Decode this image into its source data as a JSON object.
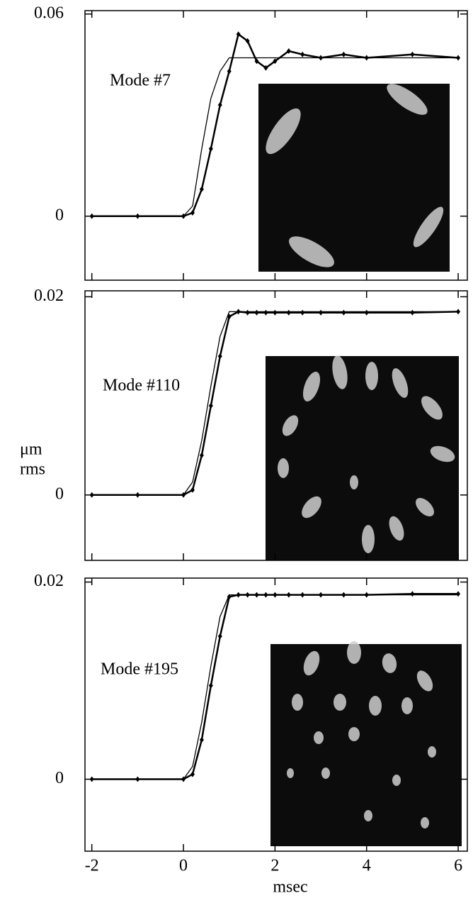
{
  "chart_data": [
    {
      "type": "line",
      "annotation": "Mode #7",
      "xlim": [
        -2.15,
        6.2
      ],
      "xticks": [
        -2,
        0,
        2,
        4,
        6
      ],
      "ylim": [
        -0.019,
        0.061
      ],
      "yticks": [
        0,
        0.06
      ],
      "x": [
        -2,
        -1,
        0,
        0.2,
        0.4,
        0.6,
        0.8,
        1.0,
        1.2,
        1.4,
        1.6,
        1.8,
        2.0,
        2.3,
        2.6,
        3,
        3.5,
        4,
        5,
        6
      ],
      "series": [
        {
          "color": "#000000",
          "marker": "diamond",
          "values": [
            0,
            0,
            0,
            0.001,
            0.008,
            0.02,
            0.033,
            0.043,
            0.054,
            0.052,
            0.046,
            0.044,
            0.046,
            0.049,
            0.048,
            0.047,
            0.048,
            0.047,
            0.048,
            0.047
          ]
        },
        {
          "color": "#000000",
          "values": [
            0,
            0,
            0,
            0.003,
            0.02,
            0.035,
            0.043,
            0.047,
            0.047,
            0.047,
            0.047,
            0.047,
            0.047,
            0.047,
            0.047,
            0.047,
            0.047,
            0.047,
            0.047,
            0.047
          ]
        }
      ]
    },
    {
      "type": "line",
      "annotation": "Mode #110",
      "ylabel": [
        "μm",
        "rms"
      ],
      "xlim": [
        -2.15,
        6.2
      ],
      "xticks": [
        -2,
        0,
        2,
        4,
        6
      ],
      "ylim": [
        -0.0066,
        0.0206
      ],
      "yticks": [
        0,
        0.02
      ],
      "x": [
        -2,
        -1,
        0,
        0.2,
        0.4,
        0.6,
        0.8,
        1.0,
        1.2,
        1.4,
        1.6,
        1.8,
        2.0,
        2.3,
        2.6,
        3,
        3.5,
        4,
        5,
        6
      ],
      "series": [
        {
          "color": "#000000",
          "marker": "diamond",
          "values": [
            0,
            0,
            0,
            0.0005,
            0.004,
            0.009,
            0.014,
            0.018,
            0.0185,
            0.0184,
            0.0184,
            0.0184,
            0.0184,
            0.0184,
            0.0184,
            0.0184,
            0.0184,
            0.0184,
            0.0184,
            0.0185
          ]
        },
        {
          "color": "#000000",
          "values": [
            0,
            0,
            0,
            0.0013,
            0.0055,
            0.011,
            0.016,
            0.0185,
            0.0185,
            0.0185,
            0.0185,
            0.0185,
            0.0185,
            0.0185,
            0.0185,
            0.0185,
            0.0185,
            0.0185,
            0.0185,
            0.0185
          ]
        }
      ]
    },
    {
      "type": "line",
      "annotation": "Mode #195",
      "xlabel": "msec",
      "xlim": [
        -2.15,
        6.2
      ],
      "xticks": [
        -2,
        0,
        2,
        4,
        6
      ],
      "ylim": [
        -0.0073,
        0.0204
      ],
      "yticks": [
        0,
        0.02
      ],
      "x": [
        -2,
        -1,
        0,
        0.2,
        0.4,
        0.6,
        0.8,
        1.0,
        1.2,
        1.4,
        1.6,
        1.8,
        2.0,
        2.3,
        2.6,
        3,
        3.5,
        4,
        5,
        6
      ],
      "series": [
        {
          "color": "#000000",
          "marker": "diamond",
          "values": [
            0,
            0,
            0,
            0.0005,
            0.004,
            0.0095,
            0.0145,
            0.0185,
            0.0187,
            0.0187,
            0.0187,
            0.0187,
            0.0187,
            0.0187,
            0.0187,
            0.0187,
            0.0187,
            0.0187,
            0.0188,
            0.0188
          ]
        },
        {
          "color": "#000000",
          "values": [
            0,
            0,
            0,
            0.0013,
            0.0058,
            0.0115,
            0.0165,
            0.0187,
            0.0187,
            0.0187,
            0.0187,
            0.0187,
            0.0187,
            0.0187,
            0.0187,
            0.0187,
            0.0187,
            0.0187,
            0.0187,
            0.0187
          ]
        }
      ]
    }
  ]
}
